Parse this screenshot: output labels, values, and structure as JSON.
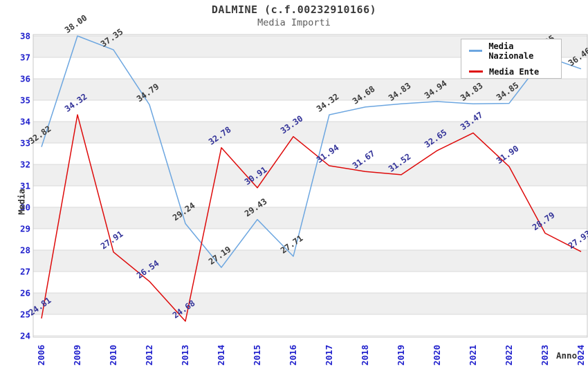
{
  "title": "DALMINE (c.f.00232910166)",
  "subtitle": "Media Importi",
  "axes": {
    "y_label": "Media",
    "x_label": "Anno"
  },
  "legend": {
    "position": "top-right"
  },
  "chart_data": {
    "type": "line",
    "title": "DALMINE (c.f.00232910166)",
    "subtitle": "Media Importi",
    "xlabel": "Anno",
    "ylabel": "Media",
    "categories": [
      "2006",
      "2009",
      "2010",
      "2012",
      "2013",
      "2014",
      "2015",
      "2016",
      "2017",
      "2018",
      "2019",
      "2020",
      "2021",
      "2022",
      "2023",
      "2024"
    ],
    "series": [
      {
        "name": "Media Nazionale",
        "color": "#6CA6E0",
        "label_color": "#3c3c3c",
        "values": [
          32.82,
          38.0,
          37.35,
          34.79,
          29.24,
          27.19,
          29.43,
          27.71,
          34.32,
          34.68,
          34.83,
          34.94,
          34.83,
          34.85,
          37.05,
          36.46
        ]
      },
      {
        "name": "Media Ente",
        "color": "#DE0A0A",
        "label_color": "#343499",
        "values": [
          24.81,
          34.32,
          27.91,
          26.54,
          24.68,
          32.78,
          30.91,
          33.3,
          31.94,
          31.67,
          31.52,
          32.65,
          33.47,
          31.9,
          28.79,
          27.93
        ]
      }
    ],
    "ylim": [
      24,
      38
    ],
    "ytick_step": 1,
    "grid": "horizontal",
    "bands": "alternating-gray",
    "legend_position": "top-right",
    "value_labels": "rotated -35deg above points",
    "tick_label_color": "#1F1FCC",
    "band_color": "#EFEFEF",
    "grid_color": "#D8D8D8",
    "border_color": "#C9C9C9"
  }
}
